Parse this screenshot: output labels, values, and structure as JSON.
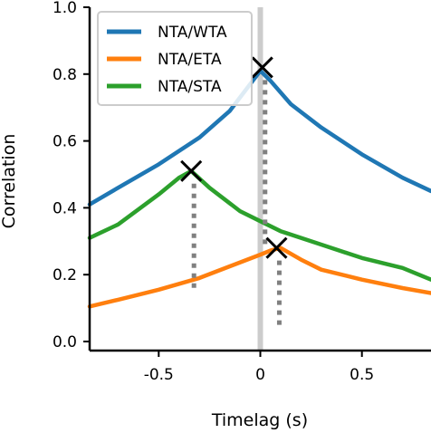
{
  "chart_data": {
    "type": "line",
    "xlabel": "Timelag (s)",
    "ylabel": "Correlation",
    "xlim": [
      -0.84,
      0.84
    ],
    "ylim": [
      0.0,
      1.0
    ],
    "x_ticks": [
      -0.5,
      0,
      0.5
    ],
    "x_tick_labels": [
      "-0.5",
      "0",
      "0.5"
    ],
    "y_ticks": [
      0.0,
      0.2,
      0.4,
      0.6,
      0.8,
      1.0
    ],
    "y_tick_labels": [
      "0.0",
      "0.2",
      "0.4",
      "0.6",
      "0.8",
      "1.0"
    ],
    "legend_position": "top-left",
    "grid": false,
    "zero_line_color": "#cccccc",
    "peak_line_color": "#808080",
    "series": [
      {
        "name": "NTA/WTA",
        "color": "#1f77b4",
        "x": [
          -0.84,
          -0.7,
          -0.5,
          -0.3,
          -0.15,
          -0.05,
          0.0,
          0.05,
          0.15,
          0.3,
          0.5,
          0.7,
          0.84
        ],
        "y": [
          0.41,
          0.46,
          0.53,
          0.61,
          0.69,
          0.77,
          0.81,
          0.78,
          0.71,
          0.64,
          0.56,
          0.49,
          0.45
        ]
      },
      {
        "name": "NTA/ETA",
        "color": "#ff7f0e",
        "x": [
          -0.84,
          -0.7,
          -0.5,
          -0.3,
          -0.15,
          0.0,
          0.05,
          0.1,
          0.2,
          0.3,
          0.5,
          0.7,
          0.84
        ],
        "y": [
          0.105,
          0.125,
          0.155,
          0.19,
          0.225,
          0.26,
          0.272,
          0.28,
          0.245,
          0.215,
          0.185,
          0.16,
          0.145
        ]
      },
      {
        "name": "NTA/STA",
        "color": "#2ca02c",
        "x": [
          -0.84,
          -0.7,
          -0.5,
          -0.4,
          -0.34,
          -0.25,
          -0.1,
          0.0,
          0.1,
          0.3,
          0.5,
          0.7,
          0.84
        ],
        "y": [
          0.31,
          0.35,
          0.44,
          0.49,
          0.51,
          0.46,
          0.39,
          0.36,
          0.33,
          0.29,
          0.25,
          0.22,
          0.185
        ]
      }
    ],
    "peaks": [
      {
        "series": "NTA/WTA",
        "x": 0.01,
        "y": 0.82
      },
      {
        "series": "NTA/ETA",
        "x": 0.08,
        "y": 0.28
      },
      {
        "series": "NTA/STA",
        "x": -0.34,
        "y": 0.51
      }
    ],
    "peak_line_bottom": [
      {
        "series": "NTA/WTA",
        "y": 0.28
      },
      {
        "series": "NTA/ETA",
        "y": 0.045
      },
      {
        "series": "NTA/STA",
        "y": 0.145
      }
    ]
  }
}
